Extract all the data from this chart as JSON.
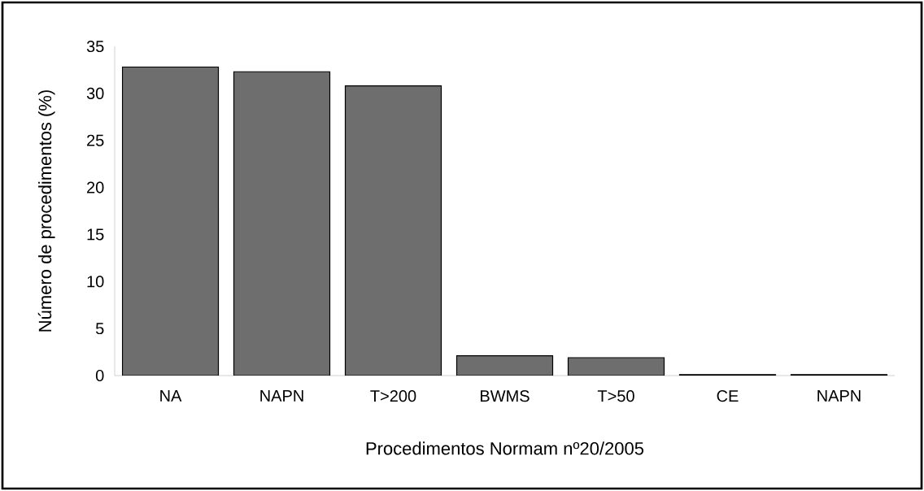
{
  "chart_data": {
    "type": "bar",
    "xlabel": "Procedimentos Normam nº20/2005",
    "ylabel": "Número de procedimentos (%)",
    "categories": [
      "NA",
      "NAPN",
      "T>200",
      "BWMS",
      "T>50",
      "CE",
      "NAPN"
    ],
    "values": [
      32.8,
      32.3,
      30.8,
      2.1,
      1.9,
      0.1,
      0.1
    ],
    "color": "#6e6e6e",
    "ylim": [
      0,
      35
    ],
    "yticks": [
      0,
      5,
      10,
      15,
      20,
      25,
      30,
      35
    ],
    "grid": false
  }
}
